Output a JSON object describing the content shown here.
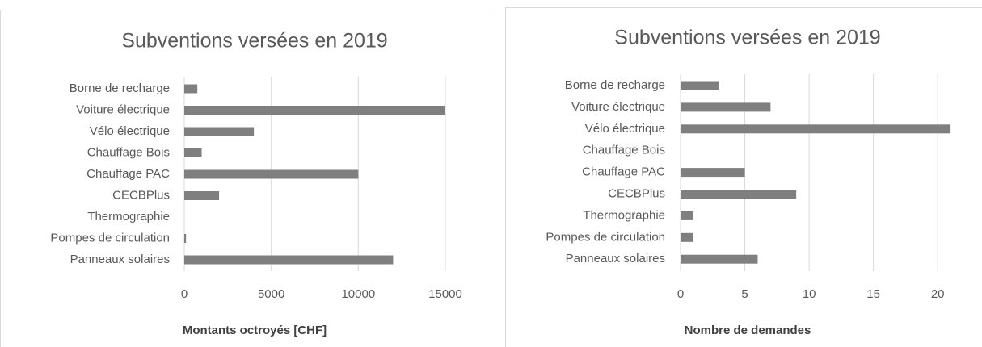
{
  "chart_data": [
    {
      "type": "bar",
      "orientation": "horizontal",
      "title": "Subventions versées en 2019",
      "xlabel": "Montants octroyés [CHF]",
      "categories": [
        "Borne de recharge",
        "Voiture électrique",
        "Vélo électrique",
        "Chauffage Bois",
        "Chauffage PAC",
        "CECBPlus",
        "Thermographie",
        "Pompes de circulation",
        "Panneaux solaires"
      ],
      "values": [
        750,
        15000,
        4000,
        1000,
        10000,
        2000,
        0,
        100,
        12000
      ],
      "color": "#7f7f7f",
      "xlim": [
        0,
        15000
      ],
      "xticks": [
        0,
        5000,
        10000,
        15000
      ],
      "grid": true
    },
    {
      "type": "bar",
      "orientation": "horizontal",
      "title": "Subventions versées en 2019",
      "xlabel": "Nombre de demandes",
      "categories": [
        "Borne de recharge",
        "Voiture électrique",
        "Vélo électrique",
        "Chauffage Bois",
        "Chauffage PAC",
        "CECBPlus",
        "Thermographie",
        "Pompes de circulation",
        "Panneaux solaires"
      ],
      "values": [
        3,
        7,
        21,
        0,
        5,
        9,
        1,
        1,
        6
      ],
      "color": "#7f7f7f",
      "xlim": [
        0,
        22
      ],
      "xticks": [
        0,
        5,
        10,
        15,
        20
      ],
      "grid": true
    }
  ]
}
